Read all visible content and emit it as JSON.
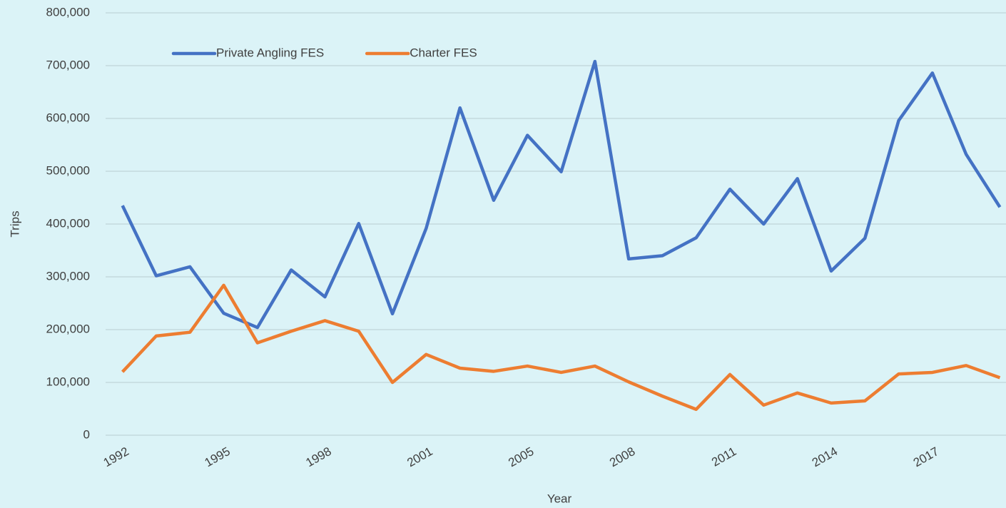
{
  "chart_data": {
    "type": "line",
    "x_label": "Year",
    "y_label": "Trips",
    "categories": [
      "1992",
      null,
      null,
      "1995",
      null,
      null,
      "1998",
      null,
      null,
      "2001",
      null,
      null,
      "2005",
      null,
      null,
      "2008",
      null,
      null,
      "2011",
      null,
      null,
      "2014",
      null,
      null,
      "2017",
      null,
      null
    ],
    "series": [
      {
        "name": "Private Angling FES",
        "color": "#4472c4",
        "values": [
          435000,
          302000,
          319000,
          231000,
          204000,
          313000,
          262000,
          401000,
          230000,
          392000,
          620000,
          445000,
          568000,
          499000,
          708000,
          334000,
          340000,
          374000,
          466000,
          400000,
          486000,
          311000,
          373000,
          596000,
          686000,
          532000,
          432000
        ]
      },
      {
        "name": "Charter FES",
        "color": "#ed7d31",
        "values": [
          120000,
          188000,
          195000,
          284000,
          175000,
          197000,
          217000,
          197000,
          100000,
          153000,
          127000,
          121000,
          131000,
          119000,
          131000,
          101000,
          74000,
          49000,
          115000,
          57000,
          80000,
          61000,
          65000,
          116000,
          119000,
          132000,
          109000
        ]
      }
    ],
    "ylim": [
      0,
      800000
    ],
    "yticks": [
      0,
      {
        "value": 100000,
        "label": "100,000"
      },
      {
        "value": 200000,
        "label": "200,000"
      },
      {
        "value": 300000,
        "label": "300,000"
      },
      {
        "value": 400000,
        "label": "400,000"
      },
      {
        "value": 500000,
        "label": "500,000"
      },
      {
        "value": 600000,
        "label": "600,000"
      },
      {
        "value": 700000,
        "label": "700,000"
      },
      {
        "value": 800000,
        "label": "800,000"
      }
    ],
    "grid": true,
    "legend": "top"
  }
}
